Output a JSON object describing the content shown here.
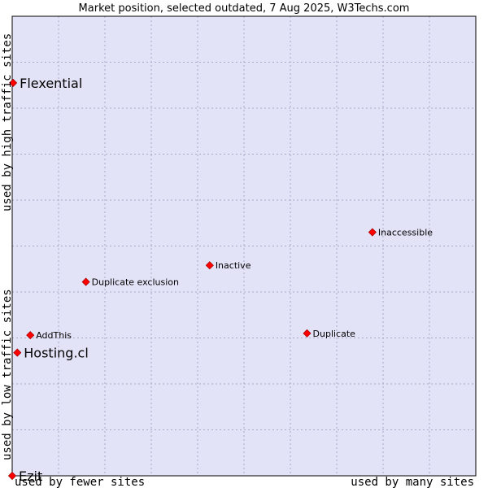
{
  "chart_data": {
    "type": "scatter",
    "title": "Market position, selected outdated, 7 Aug 2025, W3Techs.com",
    "xlabel_low": "used by fewer sites",
    "xlabel_high": "used by many sites",
    "ylabel_low": "used by low traffic sites",
    "ylabel_high": "used by high traffic sites",
    "xlim": [
      0,
      100
    ],
    "ylim": [
      0,
      100
    ],
    "grid": true,
    "x_gridlines": [
      0,
      10,
      20,
      30,
      40,
      50,
      60,
      70,
      80,
      90,
      100
    ],
    "y_gridlines": [
      0,
      10,
      20,
      30,
      40,
      50,
      60,
      70,
      80,
      90,
      100
    ],
    "points": [
      {
        "label": "Flexential",
        "x": 0.2,
        "y": 85.5,
        "emphasis": true
      },
      {
        "label": "Inaccessible",
        "x": 77.7,
        "y": 53.0,
        "emphasis": false
      },
      {
        "label": "Inactive",
        "x": 42.6,
        "y": 45.8,
        "emphasis": false
      },
      {
        "label": "Duplicate exclusion",
        "x": 15.9,
        "y": 42.2,
        "emphasis": false
      },
      {
        "label": "AddThis",
        "x": 3.9,
        "y": 30.6,
        "emphasis": false
      },
      {
        "label": "Hosting.cl",
        "x": 1.1,
        "y": 26.8,
        "emphasis": true
      },
      {
        "label": "Duplicate",
        "x": 63.6,
        "y": 31.0,
        "emphasis": false
      },
      {
        "label": "Ezit",
        "x": 0.0,
        "y": 0.0,
        "emphasis": true
      }
    ],
    "colors": {
      "plot_bg": "#e3e3f8",
      "grid": "#a9a9c8",
      "border": "#000000",
      "marker": "#ff0000",
      "marker_stroke": "#aa0000"
    }
  }
}
